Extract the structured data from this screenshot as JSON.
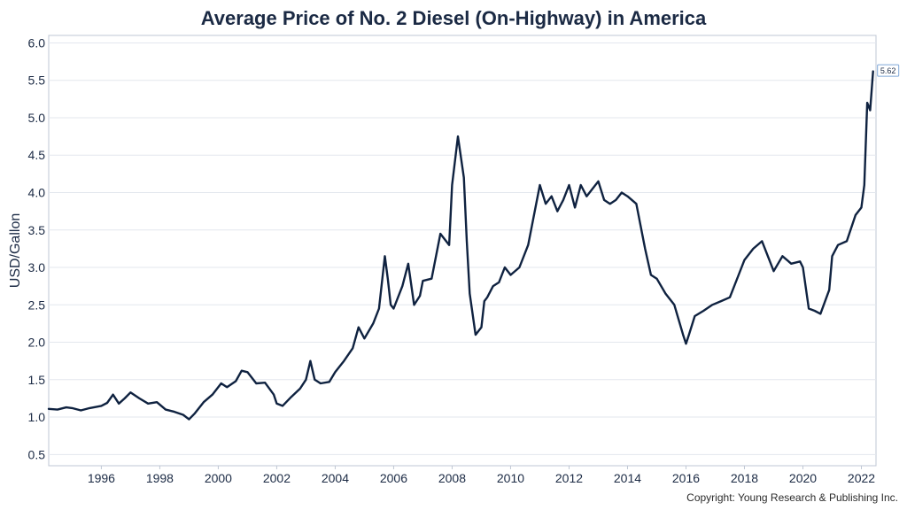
{
  "chart_data": {
    "type": "line",
    "title": "Average Price of No. 2 Diesel (On-Highway) in America",
    "xlabel": "",
    "ylabel": "USD/Gallon",
    "xlim": [
      1994.2,
      2022.5
    ],
    "ylim": [
      0.35,
      6.1
    ],
    "y_ticks": [
      "0.5",
      "1.0",
      "1.5",
      "2.0",
      "2.5",
      "3.0",
      "3.5",
      "4.0",
      "4.5",
      "5.0",
      "5.5",
      "6.0"
    ],
    "x_ticks": [
      "1996",
      "1998",
      "2000",
      "2002",
      "2004",
      "2006",
      "2008",
      "2010",
      "2012",
      "2014",
      "2016",
      "2018",
      "2020",
      "2022"
    ],
    "grid": true,
    "line_color": "#0f2240",
    "last_value_label": "5.62",
    "series": [
      {
        "name": "",
        "x": [
          1994.2,
          1994.5,
          1994.8,
          1995.0,
          1995.3,
          1995.6,
          1996.0,
          1996.2,
          1996.4,
          1996.6,
          1996.8,
          1997.0,
          1997.3,
          1997.6,
          1997.9,
          1998.2,
          1998.5,
          1998.8,
          1999.0,
          1999.2,
          1999.5,
          1999.8,
          2000.1,
          2000.3,
          2000.6,
          2000.8,
          2001.0,
          2001.3,
          2001.6,
          2001.9,
          2002.0,
          2002.2,
          2002.5,
          2002.8,
          2003.0,
          2003.15,
          2003.3,
          2003.5,
          2003.8,
          2004.0,
          2004.3,
          2004.6,
          2004.8,
          2005.0,
          2005.3,
          2005.5,
          2005.7,
          2005.8,
          2005.9,
          2006.0,
          2006.3,
          2006.5,
          2006.7,
          2006.9,
          2007.0,
          2007.3,
          2007.6,
          2007.9,
          2008.0,
          2008.2,
          2008.4,
          2008.5,
          2008.6,
          2008.8,
          2009.0,
          2009.1,
          2009.2,
          2009.4,
          2009.6,
          2009.8,
          2010.0,
          2010.3,
          2010.6,
          2010.9,
          2011.0,
          2011.2,
          2011.4,
          2011.6,
          2011.8,
          2012.0,
          2012.2,
          2012.4,
          2012.6,
          2012.8,
          2013.0,
          2013.2,
          2013.4,
          2013.6,
          2013.8,
          2014.0,
          2014.3,
          2014.6,
          2014.8,
          2015.0,
          2015.3,
          2015.6,
          2015.9,
          2016.0,
          2016.1,
          2016.3,
          2016.6,
          2016.9,
          2017.2,
          2017.5,
          2017.8,
          2018.0,
          2018.3,
          2018.6,
          2018.8,
          2019.0,
          2019.3,
          2019.6,
          2019.9,
          2020.0,
          2020.2,
          2020.4,
          2020.6,
          2020.9,
          2021.0,
          2021.2,
          2021.5,
          2021.8,
          2022.0,
          2022.1,
          2022.2,
          2022.3,
          2022.4
        ],
        "values": [
          1.11,
          1.1,
          1.13,
          1.12,
          1.09,
          1.12,
          1.15,
          1.19,
          1.3,
          1.18,
          1.25,
          1.33,
          1.25,
          1.18,
          1.2,
          1.1,
          1.07,
          1.03,
          0.97,
          1.05,
          1.2,
          1.3,
          1.45,
          1.4,
          1.48,
          1.62,
          1.6,
          1.45,
          1.46,
          1.3,
          1.18,
          1.15,
          1.27,
          1.38,
          1.5,
          1.75,
          1.5,
          1.45,
          1.47,
          1.6,
          1.75,
          1.92,
          2.2,
          2.05,
          2.25,
          2.45,
          3.15,
          2.85,
          2.5,
          2.45,
          2.75,
          3.05,
          2.5,
          2.62,
          2.82,
          2.85,
          3.45,
          3.3,
          4.1,
          4.75,
          4.2,
          3.35,
          2.65,
          2.1,
          2.2,
          2.55,
          2.6,
          2.75,
          2.8,
          3.0,
          2.9,
          3.0,
          3.3,
          3.9,
          4.1,
          3.85,
          3.95,
          3.75,
          3.9,
          4.1,
          3.8,
          4.1,
          3.95,
          4.05,
          4.15,
          3.9,
          3.85,
          3.9,
          4.0,
          3.95,
          3.85,
          3.25,
          2.9,
          2.85,
          2.65,
          2.5,
          2.1,
          1.98,
          2.1,
          2.35,
          2.42,
          2.5,
          2.55,
          2.6,
          2.9,
          3.1,
          3.25,
          3.35,
          3.15,
          2.95,
          3.15,
          3.05,
          3.08,
          3.0,
          2.45,
          2.42,
          2.38,
          2.7,
          3.15,
          3.3,
          3.35,
          3.7,
          3.8,
          4.1,
          5.2,
          5.1,
          5.62
        ]
      }
    ]
  },
  "footer": {
    "copyright": "Copyright: Young Research & Publishing Inc."
  }
}
